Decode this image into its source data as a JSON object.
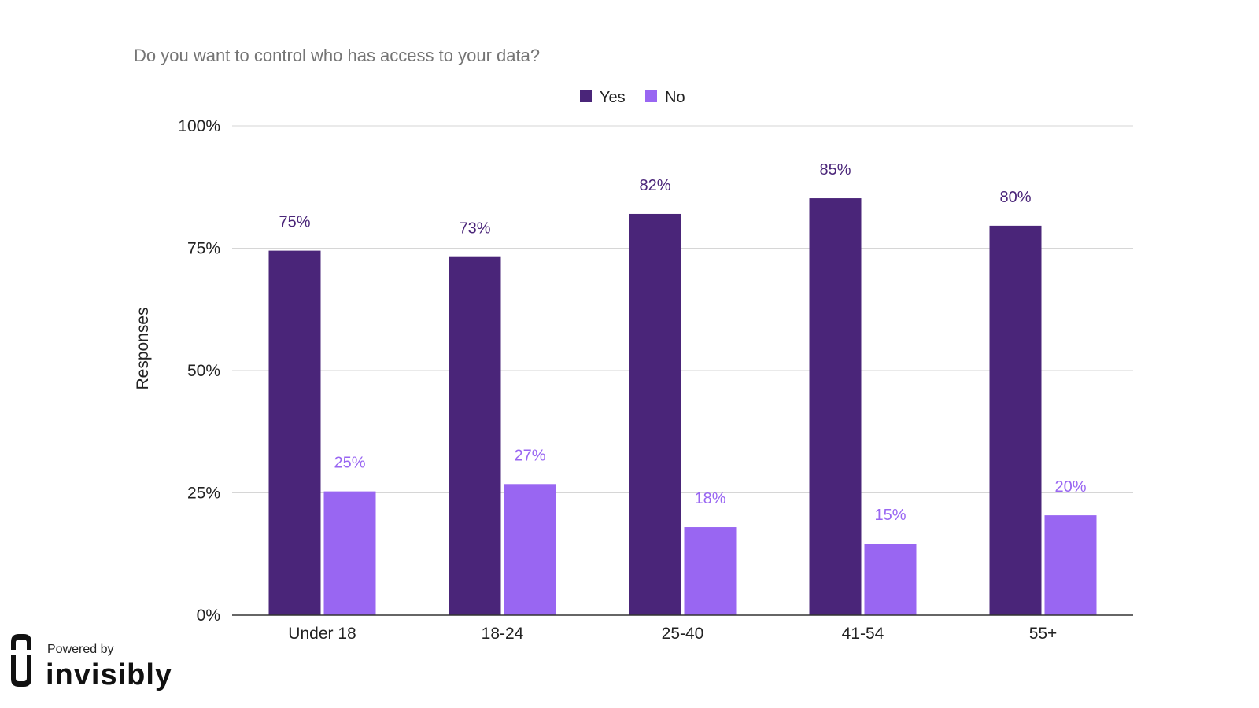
{
  "chart_data": {
    "type": "bar",
    "title": "Do you want to control who has access to your data?",
    "xlabel": "",
    "ylabel": "Responses",
    "ylim": [
      0,
      100
    ],
    "yticks": [
      "0%",
      "25%",
      "50%",
      "75%",
      "100%"
    ],
    "categories": [
      "Under 18",
      "18-24",
      "25-40",
      "41-54",
      "55+"
    ],
    "series": [
      {
        "name": "Yes",
        "color": "#4a2579",
        "values": [
          74.5,
          73.2,
          82,
          85.2,
          79.6
        ],
        "labels": [
          "75%",
          "73%",
          "82%",
          "85%",
          "80%"
        ]
      },
      {
        "name": "No",
        "color": "#9966f2",
        "values": [
          25.3,
          26.8,
          18,
          14.6,
          20.4
        ],
        "labels": [
          "25%",
          "27%",
          "18%",
          "15%",
          "20%"
        ]
      }
    ],
    "grid": true,
    "legend_position": "top-center"
  },
  "branding": {
    "powered_by": "Powered by",
    "brand_name": "invisibly",
    "logo_icon": "invisibly-logo-icon"
  }
}
